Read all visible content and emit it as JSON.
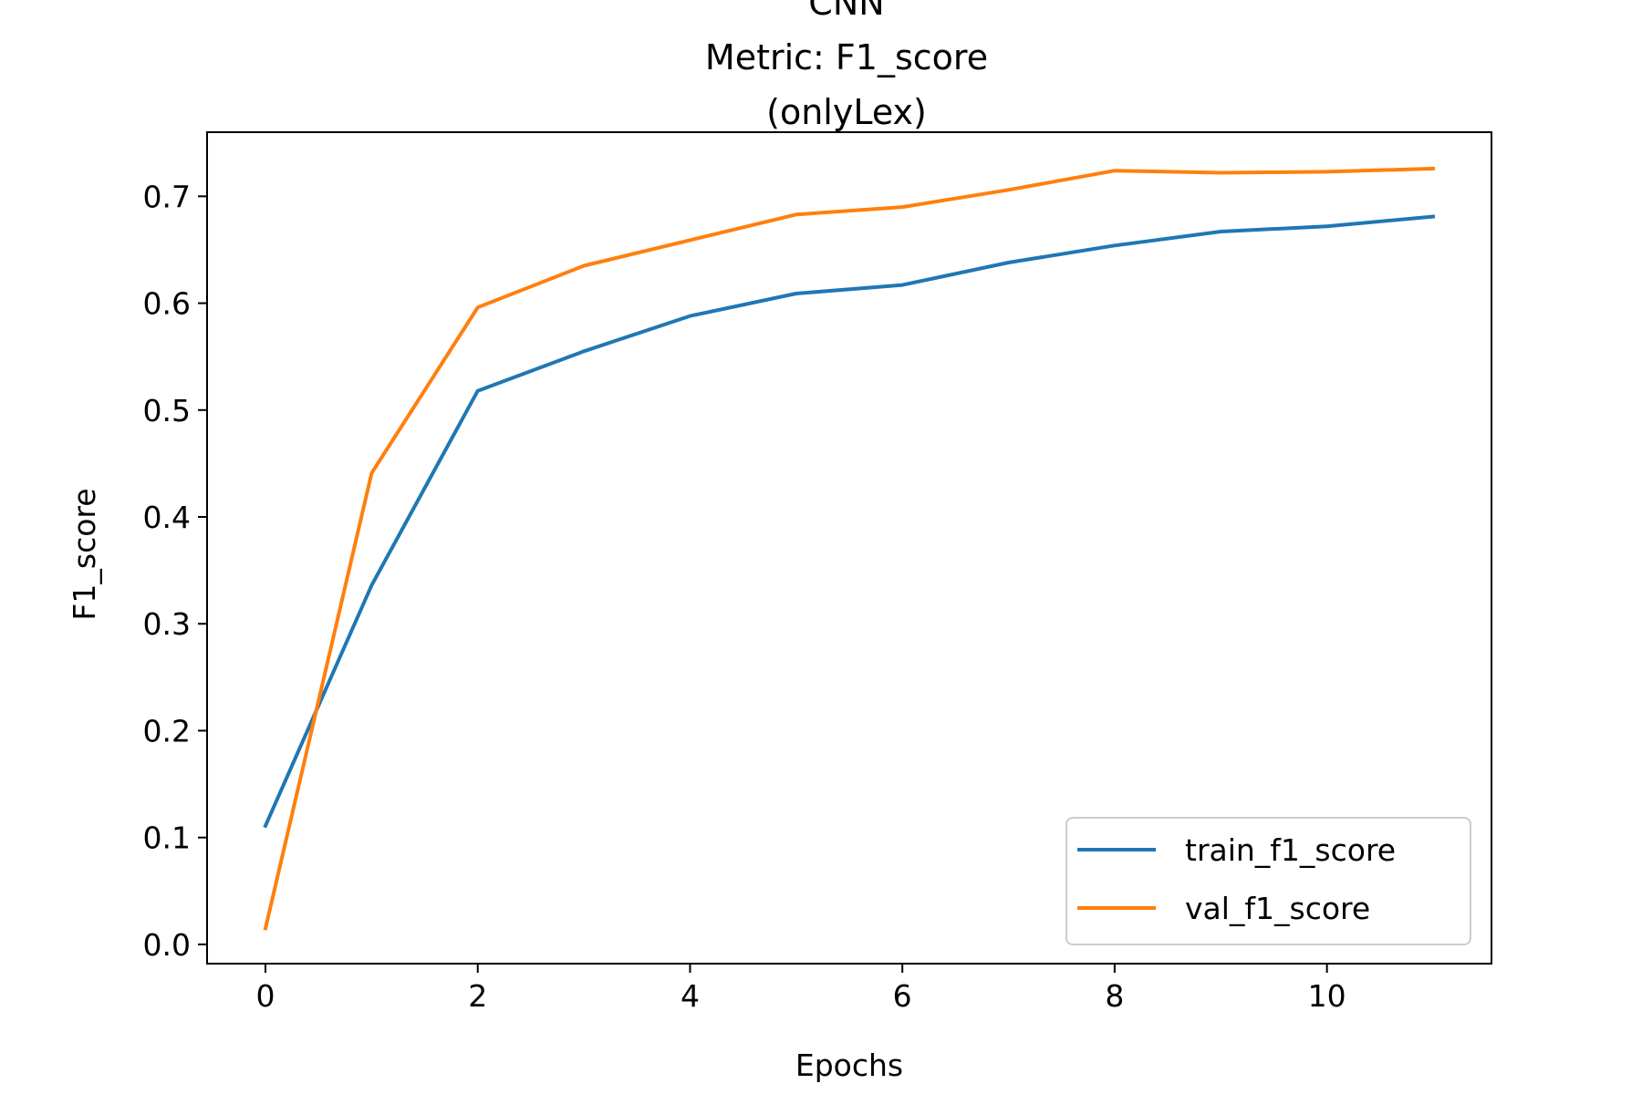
{
  "chart_data": {
    "type": "line",
    "title_lines": [
      "CNN",
      "Metric: F1_score",
      "(onlyLex)"
    ],
    "xlabel": "Epochs",
    "ylabel": "F1_score",
    "xlim": [
      -0.55,
      11.55
    ],
    "ylim": [
      -0.018,
      0.76
    ],
    "xticks": [
      0,
      2,
      4,
      6,
      8,
      10
    ],
    "xtick_labels": [
      "0",
      "2",
      "4",
      "6",
      "8",
      "10"
    ],
    "yticks": [
      0.0,
      0.1,
      0.2,
      0.3,
      0.4,
      0.5,
      0.6,
      0.7
    ],
    "ytick_labels": [
      "0.0",
      "0.1",
      "0.2",
      "0.3",
      "0.4",
      "0.5",
      "0.6",
      "0.7"
    ],
    "grid": false,
    "legend_position": "lower-right",
    "x": [
      0,
      1,
      2,
      3,
      4,
      5,
      6,
      7,
      8,
      9,
      10,
      11
    ],
    "series": [
      {
        "name": "train_f1_score",
        "color": "#1f77b4",
        "values": [
          0.111,
          0.336,
          0.518,
          0.555,
          0.588,
          0.609,
          0.617,
          0.638,
          0.654,
          0.667,
          0.672,
          0.681
        ]
      },
      {
        "name": "val_f1_score",
        "color": "#ff7f0e",
        "values": [
          0.015,
          0.441,
          0.596,
          0.635,
          0.659,
          0.683,
          0.69,
          0.706,
          0.724,
          0.722,
          0.723,
          0.726
        ]
      }
    ]
  }
}
